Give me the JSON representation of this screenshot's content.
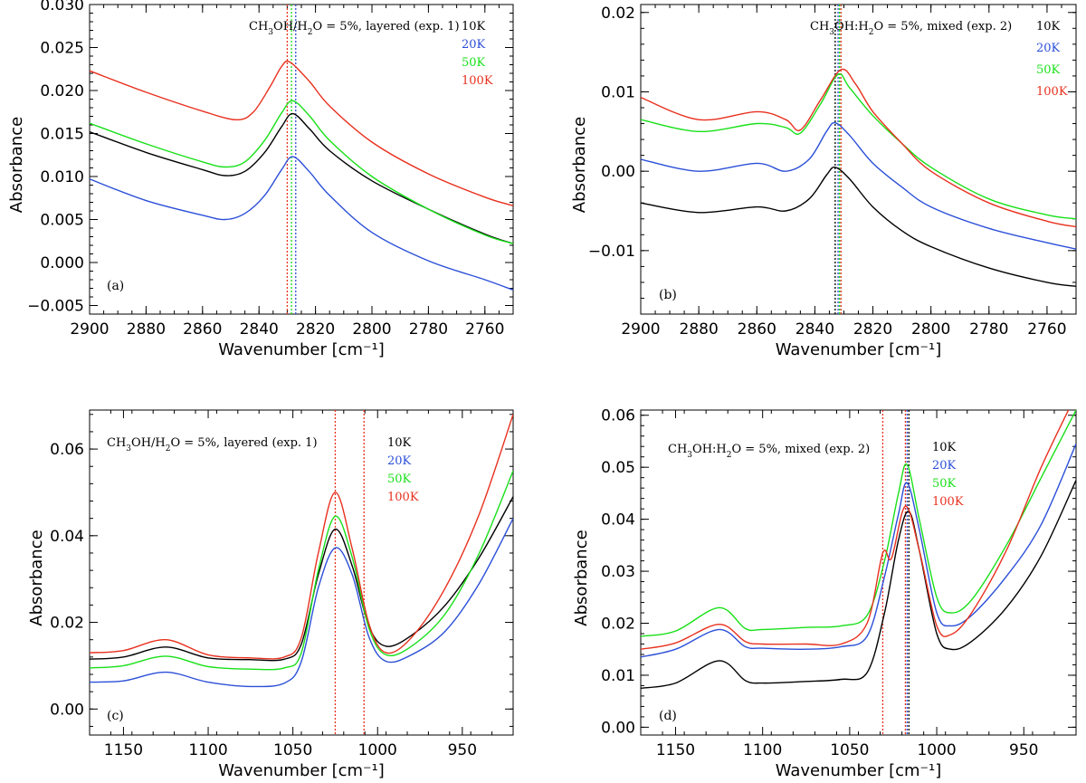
{
  "figure": {
    "colors": {
      "10K": "#000000",
      "20K": "#2b4fd8",
      "50K": "#18e018",
      "100K": "#e8301e"
    }
  },
  "chart_data": [
    {
      "type": "line",
      "panel": "(a)",
      "title": "",
      "xlabel": "Wavenumber [cm⁻¹]",
      "ylabel": "Absorbance",
      "xlim": [
        2900,
        2750
      ],
      "ylim": [
        -0.006,
        0.03
      ],
      "xticks": [
        2900,
        2880,
        2860,
        2840,
        2820,
        2800,
        2780,
        2760
      ],
      "xtick_labels": [
        "2900",
        "2880",
        "2860",
        "2840",
        "2820",
        "2800",
        "2780",
        "2760"
      ],
      "yticks": [
        -0.005,
        0.0,
        0.005,
        0.01,
        0.015,
        0.02,
        0.025,
        0.03
      ],
      "ytick_labels": [
        "−0.005",
        "0.000",
        "0.005",
        "0.010",
        "0.015",
        "0.020",
        "0.025",
        "0.030"
      ],
      "annotation": {
        "line1": "CH3OH/H2O = 5%, layered (exp. 1)",
        "prefix": "CH",
        "s1": "3",
        "mid": "OH/H",
        "s2": "2",
        "suffix": "O = 5%, layered (exp. 1)"
      },
      "legend": [
        "10K",
        "20K",
        "50K",
        "100K"
      ],
      "vlines": [
        {
          "x": 2830,
          "color": "#e8301e"
        },
        {
          "x": 2828.5,
          "color": "#18e018"
        },
        {
          "x": 2827,
          "color": "#2b4fd8"
        }
      ],
      "series": [
        {
          "name": "10K",
          "x": [
            2900,
            2880,
            2860,
            2852,
            2845,
            2838,
            2832,
            2828,
            2822,
            2815,
            2800,
            2780,
            2760,
            2750
          ],
          "y": [
            0.0152,
            0.0128,
            0.0108,
            0.0101,
            0.0106,
            0.0128,
            0.0158,
            0.0173,
            0.0155,
            0.013,
            0.0095,
            0.0062,
            0.0033,
            0.0022
          ]
        },
        {
          "name": "20K",
          "x": [
            2900,
            2880,
            2860,
            2852,
            2845,
            2838,
            2832,
            2828,
            2822,
            2815,
            2800,
            2780,
            2760,
            2750
          ],
          "y": [
            0.0097,
            0.0072,
            0.0055,
            0.005,
            0.0057,
            0.0078,
            0.0108,
            0.0123,
            0.0105,
            0.0078,
            0.0035,
            0.0002,
            -0.002,
            -0.0032
          ]
        },
        {
          "name": "50K",
          "x": [
            2900,
            2880,
            2860,
            2852,
            2845,
            2838,
            2832,
            2828,
            2822,
            2815,
            2800,
            2780,
            2760,
            2750
          ],
          "y": [
            0.0162,
            0.0138,
            0.0117,
            0.0111,
            0.0117,
            0.0142,
            0.0174,
            0.0188,
            0.017,
            0.0142,
            0.01,
            0.0062,
            0.0032,
            0.0022
          ]
        },
        {
          "name": "100K",
          "x": [
            2900,
            2880,
            2860,
            2848,
            2842,
            2836,
            2832,
            2829,
            2822,
            2815,
            2800,
            2780,
            2760,
            2750
          ],
          "y": [
            0.0223,
            0.0198,
            0.0176,
            0.0166,
            0.0175,
            0.0205,
            0.0228,
            0.0233,
            0.021,
            0.0182,
            0.014,
            0.0103,
            0.0076,
            0.0066
          ]
        }
      ]
    },
    {
      "type": "line",
      "panel": "(b)",
      "title": "",
      "xlabel": "Wavenumber [cm⁻¹]",
      "ylabel": "Absorbance",
      "xlim": [
        2900,
        2750
      ],
      "ylim": [
        -0.018,
        0.021
      ],
      "xticks": [
        2900,
        2880,
        2860,
        2840,
        2820,
        2800,
        2780,
        2760
      ],
      "xtick_labels": [
        "2900",
        "2880",
        "2860",
        "2840",
        "2820",
        "2800",
        "2780",
        "2760"
      ],
      "yticks": [
        -0.01,
        0.0,
        0.01,
        0.02
      ],
      "ytick_labels": [
        "−0.01",
        "0.00",
        "0.01",
        "0.02"
      ],
      "annotation": {
        "line1": "CH3OH:H2O = 5%, mixed (exp. 2)",
        "prefix": "CH",
        "s1": "3",
        "mid": "OH:H",
        "s2": "2",
        "suffix": "O = 5%, mixed (exp. 2)"
      },
      "legend": [
        "10K",
        "20K",
        "50K",
        "100K"
      ],
      "vlines": [
        {
          "x": 2833,
          "color": "#000000"
        },
        {
          "x": 2832,
          "color": "#2b4fd8"
        },
        {
          "x": 2831.5,
          "color": "#18e018"
        },
        {
          "x": 2831,
          "color": "#e8301e"
        }
      ],
      "series": [
        {
          "name": "10K",
          "x": [
            2900,
            2880,
            2860,
            2850,
            2842,
            2836,
            2833,
            2828,
            2820,
            2810,
            2800,
            2780,
            2760,
            2750
          ],
          "y": [
            -0.004,
            -0.0052,
            -0.0045,
            -0.005,
            -0.0035,
            -0.0005,
            0.0005,
            -0.001,
            -0.0045,
            -0.0075,
            -0.0095,
            -0.0122,
            -0.014,
            -0.0145
          ]
        },
        {
          "name": "20K",
          "x": [
            2900,
            2880,
            2860,
            2850,
            2842,
            2836,
            2833,
            2828,
            2820,
            2810,
            2800,
            2780,
            2760,
            2750
          ],
          "y": [
            0.0015,
            0.0,
            0.001,
            0.0,
            0.0015,
            0.005,
            0.0061,
            0.0045,
            0.001,
            -0.002,
            -0.0045,
            -0.0072,
            -0.009,
            -0.0098
          ]
        },
        {
          "name": "50K",
          "x": [
            2900,
            2880,
            2860,
            2850,
            2845,
            2838,
            2832,
            2828,
            2820,
            2810,
            2800,
            2780,
            2760,
            2750
          ],
          "y": [
            0.0065,
            0.005,
            0.006,
            0.0055,
            0.0048,
            0.0085,
            0.0122,
            0.0105,
            0.007,
            0.0035,
            0.0005,
            -0.0035,
            -0.0055,
            -0.006
          ]
        },
        {
          "name": "100K",
          "x": [
            2900,
            2880,
            2860,
            2850,
            2845,
            2838,
            2831,
            2826,
            2820,
            2810,
            2800,
            2780,
            2760,
            2750
          ],
          "y": [
            0.0093,
            0.0065,
            0.0075,
            0.0065,
            0.0052,
            0.009,
            0.0128,
            0.011,
            0.0075,
            0.0035,
            0.0,
            -0.004,
            -0.0063,
            -0.007
          ]
        }
      ]
    },
    {
      "type": "line",
      "panel": "(c)",
      "title": "",
      "xlabel": "Wavenumber [cm⁻¹]",
      "ylabel": "Absorbance",
      "xlim": [
        1170,
        920
      ],
      "ylim": [
        -0.006,
        0.069
      ],
      "xticks": [
        1150,
        1100,
        1050,
        1000,
        950
      ],
      "xtick_labels": [
        "1150",
        "1100",
        "1050",
        "1000",
        "950"
      ],
      "yticks": [
        0.0,
        0.02,
        0.04,
        0.06
      ],
      "ytick_labels": [
        "0.00",
        "0.02",
        "0.04",
        "0.06"
      ],
      "annotation": {
        "line1": "CH3OH/H2O = 5%, layered (exp. 1)",
        "prefix": "CH",
        "s1": "3",
        "mid": "OH/H",
        "s2": "2",
        "suffix": "O = 5%, layered (exp. 1)"
      },
      "legend": [
        "10K",
        "20K",
        "50K",
        "100K"
      ],
      "vlines": [
        {
          "x": 1025,
          "color": "#e8301e"
        },
        {
          "x": 1008,
          "color": "#e8301e"
        }
      ],
      "series": [
        {
          "name": "10K",
          "x": [
            1170,
            1150,
            1125,
            1100,
            1075,
            1055,
            1045,
            1035,
            1025,
            1015,
            1005,
            995,
            980,
            960,
            940,
            920
          ],
          "y": [
            0.0115,
            0.012,
            0.0143,
            0.0118,
            0.0114,
            0.0115,
            0.015,
            0.031,
            0.0415,
            0.033,
            0.019,
            0.0145,
            0.017,
            0.024,
            0.035,
            0.049
          ]
        },
        {
          "name": "20K",
          "x": [
            1170,
            1150,
            1125,
            1100,
            1075,
            1055,
            1045,
            1035,
            1025,
            1015,
            1005,
            995,
            980,
            960,
            940,
            920
          ],
          "y": [
            0.0062,
            0.0065,
            0.0085,
            0.0062,
            0.0052,
            0.006,
            0.011,
            0.028,
            0.0372,
            0.031,
            0.0165,
            0.011,
            0.0125,
            0.018,
            0.029,
            0.044
          ]
        },
        {
          "name": "50K",
          "x": [
            1170,
            1150,
            1125,
            1100,
            1075,
            1055,
            1045,
            1035,
            1025,
            1015,
            1005,
            995,
            980,
            960,
            940,
            920
          ],
          "y": [
            0.0095,
            0.01,
            0.0122,
            0.0098,
            0.0092,
            0.0095,
            0.013,
            0.032,
            0.0445,
            0.035,
            0.0185,
            0.0125,
            0.0145,
            0.022,
            0.036,
            0.055
          ]
        },
        {
          "name": "100K",
          "x": [
            1170,
            1150,
            1125,
            1100,
            1075,
            1055,
            1045,
            1035,
            1025,
            1015,
            1005,
            995,
            980,
            960,
            940,
            920
          ],
          "y": [
            0.013,
            0.0135,
            0.016,
            0.0125,
            0.0118,
            0.012,
            0.0165,
            0.036,
            0.05,
            0.037,
            0.0195,
            0.013,
            0.0165,
            0.028,
            0.045,
            0.068
          ]
        }
      ]
    },
    {
      "type": "line",
      "panel": "(d)",
      "title": "",
      "xlabel": "Wavenumber [cm⁻¹]",
      "ylabel": "Absorbance",
      "xlim": [
        1170,
        920
      ],
      "ylim": [
        -0.0015,
        0.061
      ],
      "xticks": [
        1150,
        1100,
        1050,
        1000,
        950
      ],
      "xtick_labels": [
        "1150",
        "1100",
        "1050",
        "1000",
        "950"
      ],
      "yticks": [
        0.0,
        0.01,
        0.02,
        0.03,
        0.04,
        0.05,
        0.06
      ],
      "ytick_labels": [
        "0.00",
        "0.01",
        "0.02",
        "0.03",
        "0.04",
        "0.05",
        "0.06"
      ],
      "annotation": {
        "line1": "CH3OH:H2O = 5%, mixed (exp. 2)",
        "prefix": "CH",
        "s1": "3",
        "mid": "OH:H",
        "s2": "2",
        "suffix": "O = 5%, mixed (exp. 2)"
      },
      "legend": [
        "10K",
        "20K",
        "50K",
        "100K"
      ],
      "vlines": [
        {
          "x": 1031,
          "color": "#e8301e"
        },
        {
          "x": 1018,
          "color": "#e8301e"
        },
        {
          "x": 1017,
          "color": "#2b4fd8"
        },
        {
          "x": 1016,
          "color": "#000000"
        }
      ],
      "series": [
        {
          "name": "10K",
          "x": [
            1170,
            1150,
            1125,
            1110,
            1100,
            1075,
            1055,
            1040,
            1030,
            1022,
            1016,
            1010,
            1000,
            992,
            980,
            960,
            940,
            920
          ],
          "y": [
            0.0075,
            0.0085,
            0.0128,
            0.009,
            0.0085,
            0.0088,
            0.0092,
            0.0105,
            0.022,
            0.036,
            0.0415,
            0.034,
            0.018,
            0.015,
            0.0165,
            0.023,
            0.033,
            0.0475
          ]
        },
        {
          "name": "20K",
          "x": [
            1170,
            1150,
            1125,
            1110,
            1100,
            1075,
            1055,
            1040,
            1030,
            1022,
            1017,
            1010,
            1000,
            992,
            980,
            960,
            940,
            920
          ],
          "y": [
            0.0135,
            0.015,
            0.0188,
            0.0155,
            0.0152,
            0.015,
            0.0155,
            0.0175,
            0.029,
            0.041,
            0.047,
            0.038,
            0.022,
            0.0195,
            0.0215,
            0.029,
            0.039,
            0.0545
          ]
        },
        {
          "name": "50K",
          "x": [
            1170,
            1150,
            1125,
            1110,
            1100,
            1075,
            1055,
            1040,
            1030,
            1022,
            1017,
            1010,
            1000,
            992,
            980,
            960,
            940,
            920
          ],
          "y": [
            0.0175,
            0.0185,
            0.023,
            0.019,
            0.0188,
            0.0192,
            0.0195,
            0.0215,
            0.032,
            0.045,
            0.0505,
            0.04,
            0.025,
            0.022,
            0.0245,
            0.035,
            0.048,
            0.061
          ]
        },
        {
          "name": "100K",
          "x": [
            1170,
            1150,
            1125,
            1110,
            1100,
            1075,
            1055,
            1040,
            1031,
            1026,
            1018,
            1010,
            1000,
            992,
            980,
            960,
            940,
            920
          ],
          "y": [
            0.015,
            0.0162,
            0.0198,
            0.0165,
            0.016,
            0.016,
            0.016,
            0.02,
            0.0335,
            0.0325,
            0.0425,
            0.034,
            0.0195,
            0.0178,
            0.022,
            0.034,
            0.05,
            0.064
          ]
        }
      ]
    }
  ]
}
